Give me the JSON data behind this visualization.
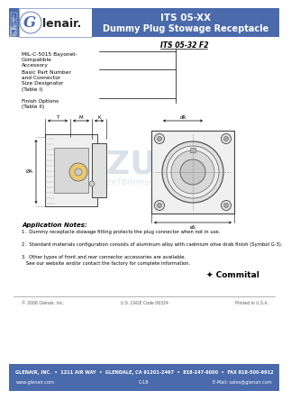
{
  "title_line1": "ITS 05-XX",
  "title_line2": "Dummy Plug Stowage Receptacle",
  "header_bg_color": "#4a6aab",
  "header_text_color": "#ffffff",
  "body_bg": "#ffffff",
  "part_number_label": "ITS 05-32 F2",
  "callout_lines": [
    "MIL-C-5015 Bayonet-\nCompatible\nAccessory",
    "Basic Part Number\nand Connector\nSize Designator\n(Table I)",
    "Finish Options\n(Table II)"
  ],
  "app_notes_title": "Application Notes:",
  "app_notes": [
    "Dummy receptacle stowage fitting protects the plug connector when not in use.",
    "Standard materials configuration consists of aluminum alloy with cadmium olive drab finish (Symbol G-3).",
    "Other types of front and rear connector accessories are available.\n   See our website and/or contact the factory for complete information."
  ],
  "footer_line1": "GLENAIR, INC.  •  1211 AIR WAY  •  GLENDALE, CA 91201-2497  •  818-247-6000  •  FAX 818-500-9912",
  "footer_line2_left": "www.glenair.com",
  "footer_line2_mid": "C-18",
  "footer_line2_right": "E-Mail: sales@glenair.com",
  "footer_copy": "© 2006 Glenair, Inc.",
  "footer_cage": "U.S. CAGE Code 06324",
  "footer_printed": "Printed in U.S.A.",
  "watermark_text": "KAZUS.ru",
  "watermark_sub": "электронный  форум"
}
